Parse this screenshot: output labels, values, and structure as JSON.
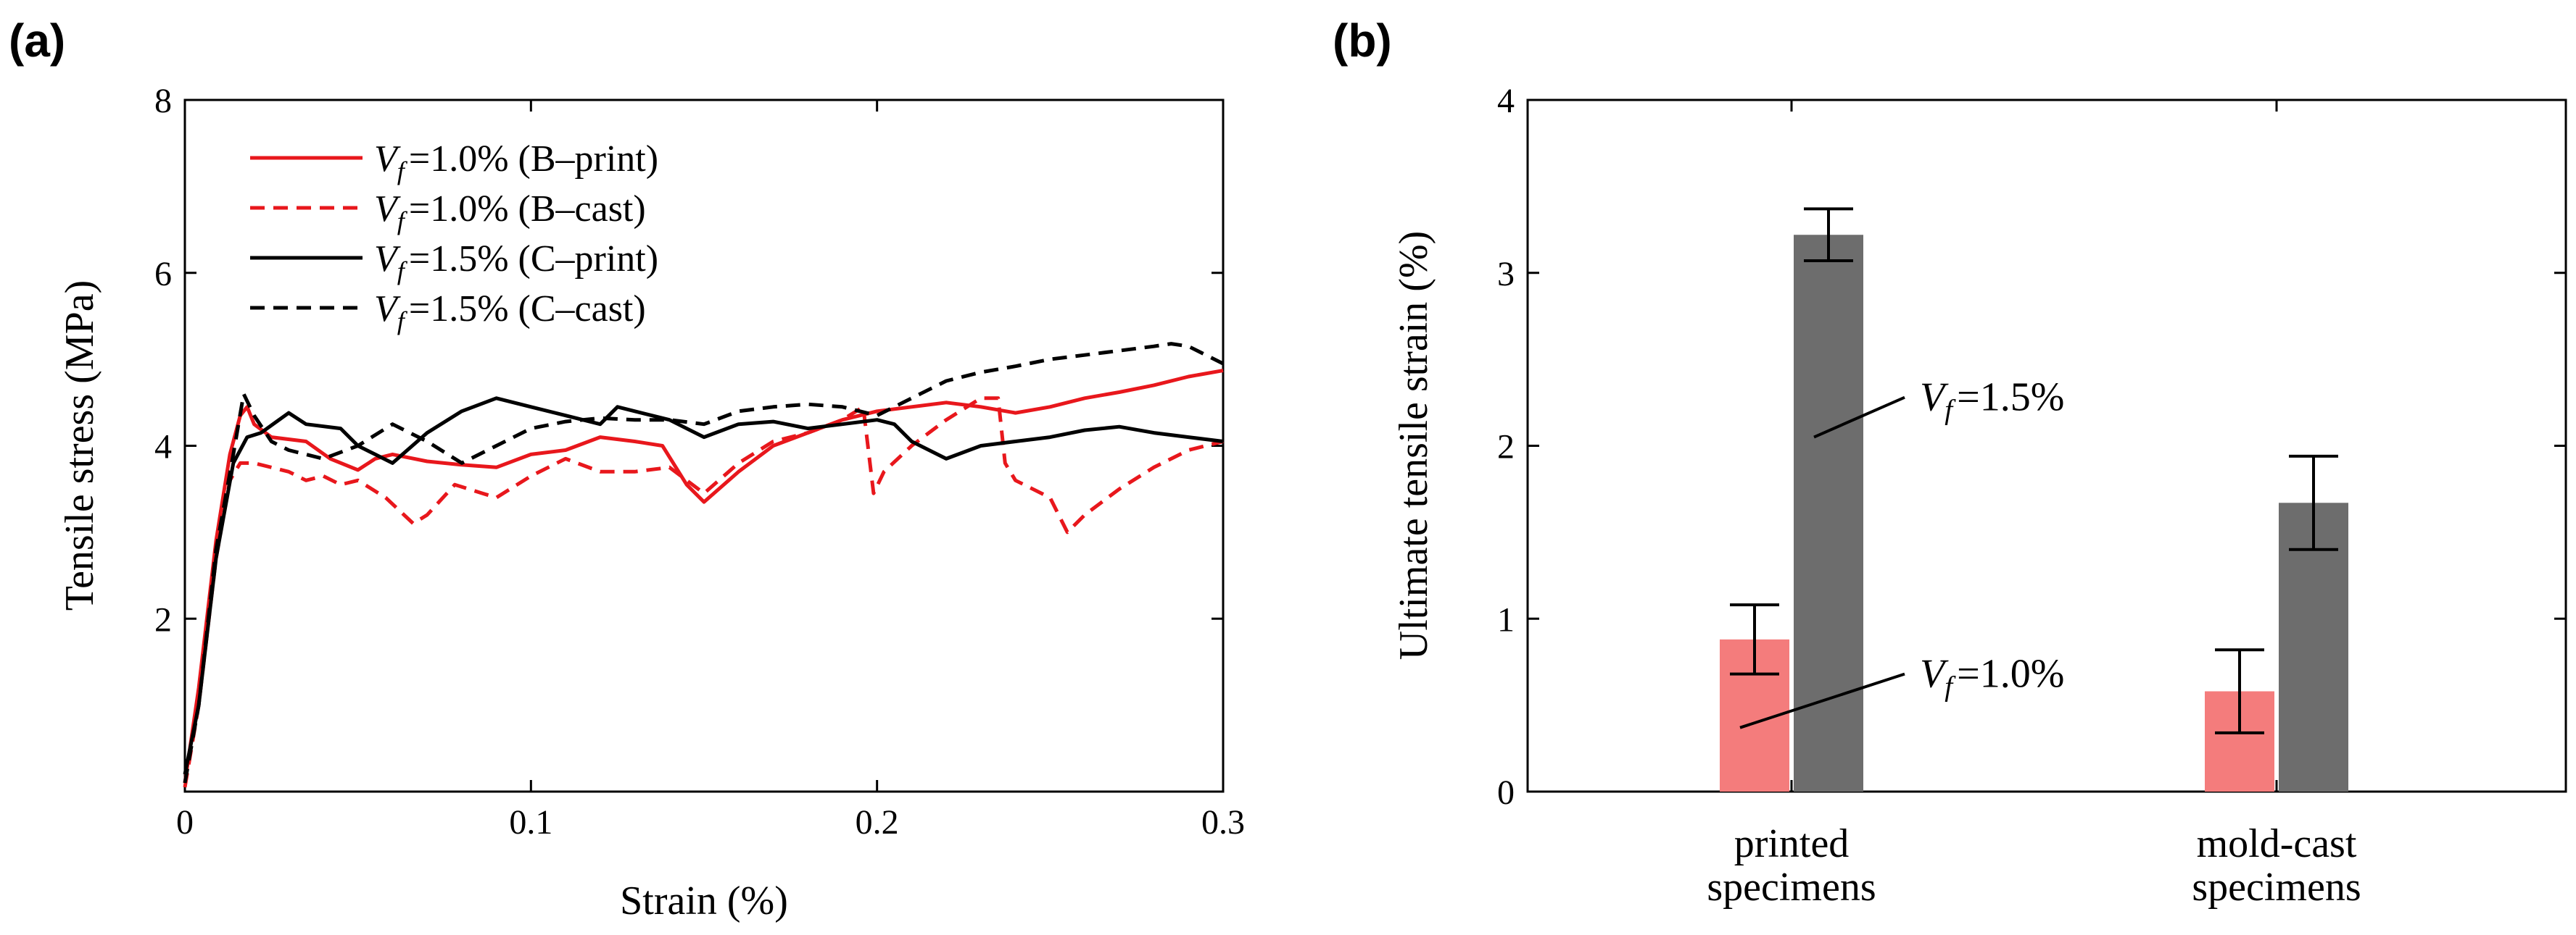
{
  "panel_labels": [
    "(a)",
    "(b)"
  ],
  "chart_data": [
    {
      "type": "line",
      "panel": "(a)",
      "xlabel": "Strain (%)",
      "ylabel": "Tensile stress (MPa)",
      "xlim": [
        0,
        0.3
      ],
      "ylim": [
        0,
        8
      ],
      "xticks": [
        0,
        0.1,
        0.2,
        0.3
      ],
      "xtick_labels": [
        "0",
        "0.1",
        "0.2",
        "0.3"
      ],
      "yticks": [
        2,
        4,
        6,
        8
      ],
      "ytick_labels": [
        "2",
        "4",
        "6",
        "8"
      ],
      "legend_position": "top-left",
      "series": [
        {
          "name": "=1.0% (B–print)",
          "name_var": "V",
          "name_sub": "f",
          "color": "#e8171c",
          "dash": "solid",
          "points": [
            [
              0,
              0.1
            ],
            [
              0.004,
              1.2
            ],
            [
              0.009,
              2.9
            ],
            [
              0.013,
              3.9
            ],
            [
              0.016,
              4.35
            ],
            [
              0.018,
              4.45
            ],
            [
              0.02,
              4.25
            ],
            [
              0.025,
              4.1
            ],
            [
              0.035,
              4.05
            ],
            [
              0.042,
              3.85
            ],
            [
              0.05,
              3.72
            ],
            [
              0.055,
              3.85
            ],
            [
              0.06,
              3.9
            ],
            [
              0.07,
              3.82
            ],
            [
              0.08,
              3.78
            ],
            [
              0.09,
              3.75
            ],
            [
              0.1,
              3.9
            ],
            [
              0.11,
              3.95
            ],
            [
              0.12,
              4.1
            ],
            [
              0.13,
              4.05
            ],
            [
              0.138,
              4.0
            ],
            [
              0.145,
              3.55
            ],
            [
              0.15,
              3.35
            ],
            [
              0.16,
              3.7
            ],
            [
              0.17,
              4.0
            ],
            [
              0.18,
              4.15
            ],
            [
              0.19,
              4.3
            ],
            [
              0.2,
              4.4
            ],
            [
              0.21,
              4.45
            ],
            [
              0.22,
              4.5
            ],
            [
              0.23,
              4.45
            ],
            [
              0.24,
              4.38
            ],
            [
              0.25,
              4.45
            ],
            [
              0.26,
              4.55
            ],
            [
              0.27,
              4.62
            ],
            [
              0.28,
              4.7
            ],
            [
              0.29,
              4.8
            ],
            [
              0.3,
              4.87
            ]
          ]
        },
        {
          "name": "=1.0% (B–cast)",
          "name_var": "V",
          "name_sub": "f",
          "color": "#e8171c",
          "dash": "dashed",
          "points": [
            [
              0,
              0.05
            ],
            [
              0.004,
              1.0
            ],
            [
              0.009,
              2.7
            ],
            [
              0.013,
              3.6
            ],
            [
              0.016,
              3.8
            ],
            [
              0.02,
              3.8
            ],
            [
              0.03,
              3.7
            ],
            [
              0.035,
              3.6
            ],
            [
              0.04,
              3.65
            ],
            [
              0.045,
              3.55
            ],
            [
              0.05,
              3.6
            ],
            [
              0.058,
              3.4
            ],
            [
              0.066,
              3.1
            ],
            [
              0.07,
              3.2
            ],
            [
              0.078,
              3.55
            ],
            [
              0.086,
              3.45
            ],
            [
              0.09,
              3.4
            ],
            [
              0.1,
              3.65
            ],
            [
              0.11,
              3.85
            ],
            [
              0.12,
              3.7
            ],
            [
              0.13,
              3.7
            ],
            [
              0.14,
              3.75
            ],
            [
              0.15,
              3.45
            ],
            [
              0.16,
              3.8
            ],
            [
              0.17,
              4.05
            ],
            [
              0.18,
              4.15
            ],
            [
              0.19,
              4.3
            ],
            [
              0.196,
              4.45
            ],
            [
              0.199,
              3.45
            ],
            [
              0.202,
              3.7
            ],
            [
              0.21,
              4.0
            ],
            [
              0.22,
              4.3
            ],
            [
              0.23,
              4.55
            ],
            [
              0.235,
              4.55
            ],
            [
              0.237,
              3.8
            ],
            [
              0.24,
              3.6
            ],
            [
              0.25,
              3.4
            ],
            [
              0.255,
              3.0
            ],
            [
              0.26,
              3.2
            ],
            [
              0.27,
              3.5
            ],
            [
              0.28,
              3.75
            ],
            [
              0.29,
              3.95
            ],
            [
              0.3,
              4.05
            ]
          ]
        },
        {
          "name": "=1.5% (C–print)",
          "name_var": "V",
          "name_sub": "f",
          "color": "#000000",
          "dash": "solid",
          "points": [
            [
              0,
              0.2
            ],
            [
              0.004,
              1.0
            ],
            [
              0.009,
              2.7
            ],
            [
              0.014,
              3.8
            ],
            [
              0.018,
              4.1
            ],
            [
              0.022,
              4.15
            ],
            [
              0.03,
              4.38
            ],
            [
              0.035,
              4.25
            ],
            [
              0.045,
              4.2
            ],
            [
              0.05,
              4.0
            ],
            [
              0.055,
              3.9
            ],
            [
              0.06,
              3.8
            ],
            [
              0.07,
              4.15
            ],
            [
              0.08,
              4.4
            ],
            [
              0.09,
              4.55
            ],
            [
              0.1,
              4.45
            ],
            [
              0.11,
              4.35
            ],
            [
              0.12,
              4.25
            ],
            [
              0.125,
              4.45
            ],
            [
              0.13,
              4.4
            ],
            [
              0.14,
              4.3
            ],
            [
              0.15,
              4.1
            ],
            [
              0.16,
              4.25
            ],
            [
              0.17,
              4.28
            ],
            [
              0.18,
              4.2
            ],
            [
              0.19,
              4.25
            ],
            [
              0.2,
              4.3
            ],
            [
              0.205,
              4.25
            ],
            [
              0.21,
              4.05
            ],
            [
              0.22,
              3.85
            ],
            [
              0.23,
              4.0
            ],
            [
              0.24,
              4.05
            ],
            [
              0.25,
              4.1
            ],
            [
              0.26,
              4.18
            ],
            [
              0.27,
              4.22
            ],
            [
              0.28,
              4.15
            ],
            [
              0.29,
              4.1
            ],
            [
              0.3,
              4.05
            ]
          ]
        },
        {
          "name": "=1.5% (C–cast)",
          "name_var": "V",
          "name_sub": "f",
          "color": "#000000",
          "dash": "dashed",
          "points": [
            [
              0,
              0.1
            ],
            [
              0.004,
              1.0
            ],
            [
              0.009,
              2.8
            ],
            [
              0.014,
              3.9
            ],
            [
              0.017,
              4.6
            ],
            [
              0.02,
              4.35
            ],
            [
              0.025,
              4.05
            ],
            [
              0.03,
              3.95
            ],
            [
              0.04,
              3.85
            ],
            [
              0.05,
              4.0
            ],
            [
              0.06,
              4.25
            ],
            [
              0.07,
              4.05
            ],
            [
              0.08,
              3.8
            ],
            [
              0.09,
              4.0
            ],
            [
              0.1,
              4.2
            ],
            [
              0.11,
              4.28
            ],
            [
              0.12,
              4.32
            ],
            [
              0.13,
              4.3
            ],
            [
              0.14,
              4.3
            ],
            [
              0.15,
              4.25
            ],
            [
              0.16,
              4.4
            ],
            [
              0.17,
              4.45
            ],
            [
              0.18,
              4.48
            ],
            [
              0.19,
              4.45
            ],
            [
              0.2,
              4.35
            ],
            [
              0.21,
              4.55
            ],
            [
              0.22,
              4.75
            ],
            [
              0.23,
              4.85
            ],
            [
              0.24,
              4.92
            ],
            [
              0.25,
              5.0
            ],
            [
              0.26,
              5.05
            ],
            [
              0.27,
              5.1
            ],
            [
              0.28,
              5.15
            ],
            [
              0.285,
              5.18
            ],
            [
              0.29,
              5.15
            ],
            [
              0.3,
              4.95
            ]
          ]
        }
      ]
    },
    {
      "type": "bar",
      "panel": "(b)",
      "ylabel": "Ultimate tensile strain (%)",
      "ylim": [
        0,
        4
      ],
      "yticks": [
        0,
        1,
        2,
        3,
        4
      ],
      "ytick_labels": [
        "0",
        "1",
        "2",
        "3",
        "4"
      ],
      "categories": [
        "printed specimens",
        "mold-cast specimens"
      ],
      "category_lines": [
        [
          "printed",
          "specimens"
        ],
        [
          "mold-cast",
          "specimens"
        ]
      ],
      "series": [
        {
          "name": "=1.0%",
          "name_var": "V",
          "name_sub": "f",
          "color": "#f47c7c",
          "values": [
            0.88,
            0.58
          ],
          "errors": [
            0.2,
            0.24
          ]
        },
        {
          "name": "=1.5%",
          "name_var": "V",
          "name_sub": "f",
          "color": "#6d6d6d",
          "values": [
            3.22,
            1.67
          ],
          "errors": [
            0.15,
            0.27
          ]
        }
      ]
    }
  ]
}
